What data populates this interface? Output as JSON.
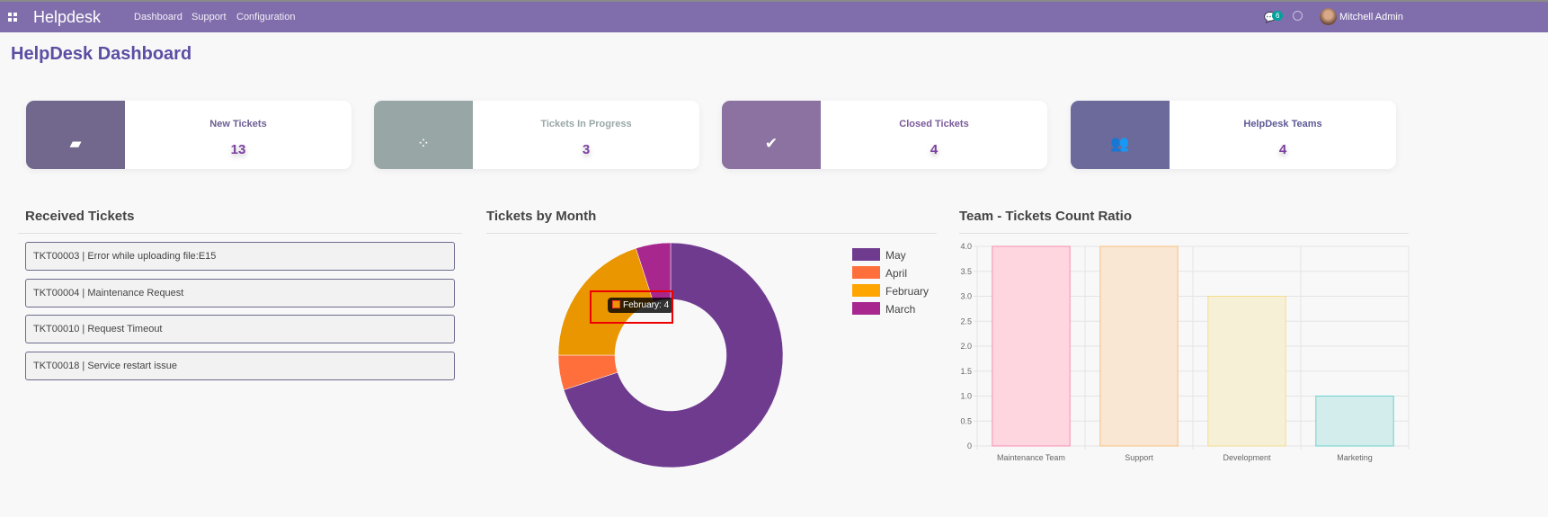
{
  "nav": {
    "brand": "Helpdesk",
    "menu": [
      "Dashboard",
      "Support",
      "Configuration"
    ],
    "chat_count": "6",
    "user": "Mitchell Admin"
  },
  "page_title": "HelpDesk Dashboard",
  "cards": [
    {
      "label": "New Tickets",
      "value": "13",
      "icon": "inbox-icon",
      "color": "#72678c",
      "label_color": "#6b5e94"
    },
    {
      "label": "Tickets In Progress",
      "value": "3",
      "icon": "spinner-icon",
      "color": "#98a7a6",
      "label_color": "#98a7a6"
    },
    {
      "label": "Closed Tickets",
      "value": "4",
      "icon": "check-icon",
      "color": "#8b72a0",
      "label_color": "#7a5a9a"
    },
    {
      "label": "HelpDesk Teams",
      "value": "4",
      "icon": "users-icon",
      "color": "#6c6a9b",
      "label_color": "#5d5a96"
    }
  ],
  "received": {
    "title": "Received Tickets",
    "items": [
      "TKT00003 | Error while uploading file:E15",
      "TKT00004 | Maintenance Request",
      "TKT00010 | Request Timeout",
      "TKT00018 | Service restart issue"
    ]
  },
  "chart_data": [
    {
      "type": "pie",
      "title": "Tickets by Month",
      "categories": [
        "May",
        "April",
        "February",
        "March"
      ],
      "values": [
        14,
        1,
        4,
        1
      ],
      "colors": [
        "#6f3b8f",
        "#ff6f3c",
        "#e99600",
        "#a8278f"
      ],
      "legend": "right",
      "tooltip": "February: 4"
    },
    {
      "type": "bar",
      "title": "Team - Tickets Count Ratio",
      "categories": [
        "Maintenance Team",
        "Support",
        "Development",
        "Marketing"
      ],
      "values": [
        4,
        4,
        3,
        1
      ],
      "ylim": [
        0,
        4
      ],
      "yticks": [
        "0",
        "0.5",
        "1.0",
        "1.5",
        "2.0",
        "2.5",
        "3.0",
        "3.5",
        "4.0"
      ],
      "grid": true,
      "fill": [
        "#fdd6e0",
        "#f9e6d3",
        "#f6f1d6",
        "#d3ecec"
      ],
      "stroke": [
        "#f78fb0",
        "#f7c27f",
        "#f3dd8e",
        "#6ad3cd"
      ]
    }
  ]
}
